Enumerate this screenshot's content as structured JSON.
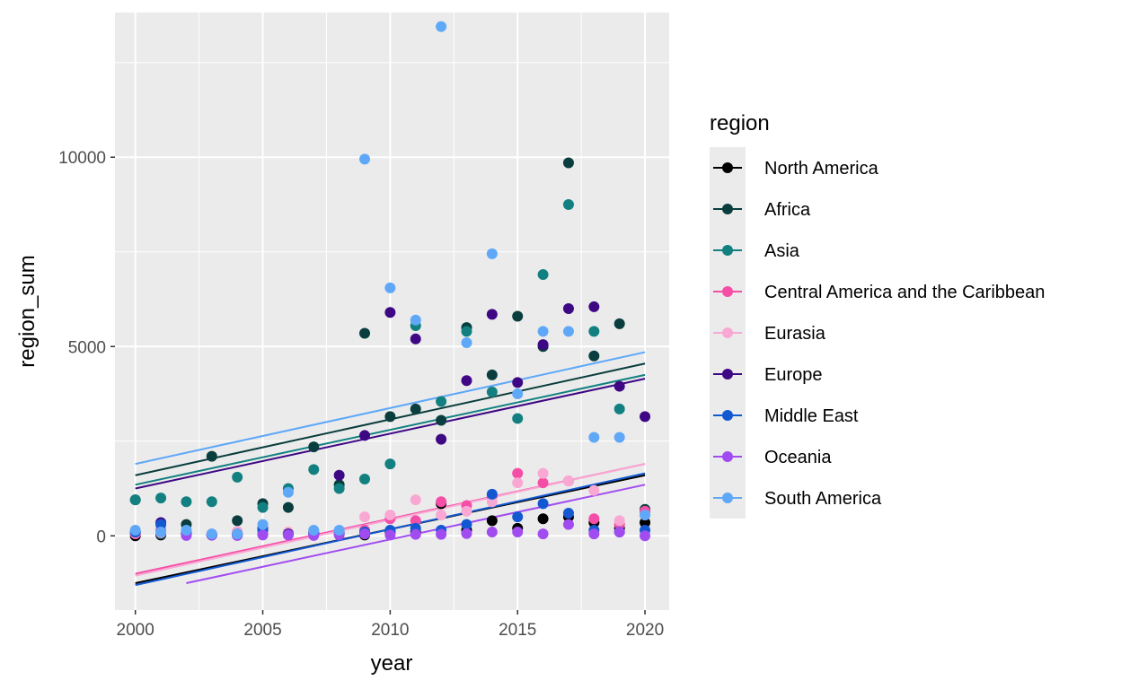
{
  "chart_data": {
    "type": "scatter",
    "title": "",
    "xlabel": "year",
    "ylabel": "region_sum",
    "xlim": [
      1999.2,
      2020.95
    ],
    "ylim": [
      -1960,
      13820
    ],
    "x_ticks": [
      2000,
      2005,
      2010,
      2015,
      2020
    ],
    "y_ticks": [
      0,
      5000,
      10000
    ],
    "x_tick_labels": [
      "2000",
      "2005",
      "2010",
      "2015",
      "2020"
    ],
    "y_tick_labels": [
      "0",
      "5000",
      "10000"
    ],
    "grid": true,
    "legend": {
      "title": "region",
      "position": "right"
    },
    "series": [
      {
        "name": "North America",
        "color": "#000000",
        "points": [
          [
            2000,
            0
          ],
          [
            2001,
            20
          ],
          [
            2002,
            50
          ],
          [
            2003,
            20
          ],
          [
            2004,
            20
          ],
          [
            2005,
            50
          ],
          [
            2006,
            60
          ],
          [
            2007,
            100
          ],
          [
            2008,
            100
          ],
          [
            2009,
            20
          ],
          [
            2010,
            100
          ],
          [
            2011,
            100
          ],
          [
            2012,
            850
          ],
          [
            2013,
            150
          ],
          [
            2014,
            400
          ],
          [
            2015,
            200
          ],
          [
            2016,
            450
          ],
          [
            2017,
            500
          ],
          [
            2018,
            350
          ],
          [
            2019,
            200
          ],
          [
            2020,
            350
          ]
        ],
        "trend": {
          "x": [
            2000,
            2020
          ],
          "y": [
            -1250,
            1600
          ]
        }
      },
      {
        "name": "Africa",
        "color": "#0a3d3d",
        "points": [
          [
            2000,
            950
          ],
          [
            2001,
            40
          ],
          [
            2002,
            300
          ],
          [
            2003,
            2100
          ],
          [
            2004,
            400
          ],
          [
            2005,
            850
          ],
          [
            2006,
            750
          ],
          [
            2007,
            2350
          ],
          [
            2008,
            1350
          ],
          [
            2009,
            5350
          ],
          [
            2010,
            3150
          ],
          [
            2011,
            3350
          ],
          [
            2012,
            3050
          ],
          [
            2013,
            5500
          ],
          [
            2014,
            4250
          ],
          [
            2015,
            5800
          ],
          [
            2016,
            5000
          ],
          [
            2017,
            9850
          ],
          [
            2018,
            4750
          ],
          [
            2019,
            5600
          ],
          [
            2020,
            700
          ]
        ],
        "trend": {
          "x": [
            2000,
            2020
          ],
          "y": [
            1600,
            4550
          ]
        }
      },
      {
        "name": "Asia",
        "color": "#128080",
        "points": [
          [
            2000,
            950
          ],
          [
            2001,
            1000
          ],
          [
            2002,
            900
          ],
          [
            2003,
            900
          ],
          [
            2004,
            1550
          ],
          [
            2005,
            750
          ],
          [
            2006,
            1250
          ],
          [
            2007,
            1750
          ],
          [
            2008,
            1250
          ],
          [
            2009,
            1500
          ],
          [
            2010,
            1900
          ],
          [
            2011,
            5550
          ],
          [
            2012,
            3550
          ],
          [
            2013,
            5400
          ],
          [
            2014,
            3800
          ],
          [
            2015,
            3100
          ],
          [
            2016,
            6900
          ],
          [
            2017,
            8750
          ],
          [
            2018,
            5400
          ],
          [
            2019,
            3350
          ],
          [
            2020,
            650
          ]
        ],
        "trend": {
          "x": [
            2000,
            2020
          ],
          "y": [
            1350,
            4250
          ]
        }
      },
      {
        "name": "Central America and the Caribbean",
        "color": "#f54ea6",
        "points": [
          [
            2000,
            50
          ],
          [
            2001,
            150
          ],
          [
            2002,
            50
          ],
          [
            2003,
            20
          ],
          [
            2004,
            50
          ],
          [
            2005,
            100
          ],
          [
            2006,
            80
          ],
          [
            2007,
            100
          ],
          [
            2008,
            80
          ],
          [
            2009,
            150
          ],
          [
            2010,
            450
          ],
          [
            2011,
            400
          ],
          [
            2012,
            900
          ],
          [
            2013,
            800
          ],
          [
            2014,
            1050
          ],
          [
            2015,
            1650
          ],
          [
            2016,
            1400
          ],
          [
            2017,
            1450
          ],
          [
            2018,
            450
          ],
          [
            2019,
            300
          ],
          [
            2020,
            650
          ]
        ],
        "trend": {
          "x": [
            2000,
            2020
          ],
          "y": [
            -1000,
            1900
          ]
        }
      },
      {
        "name": "Eurasia",
        "color": "#f9a8d4",
        "points": [
          [
            2000,
            80
          ],
          [
            2001,
            80
          ],
          [
            2002,
            80
          ],
          [
            2003,
            50
          ],
          [
            2004,
            120
          ],
          [
            2005,
            120
          ],
          [
            2006,
            100
          ],
          [
            2007,
            100
          ],
          [
            2008,
            100
          ],
          [
            2009,
            500
          ],
          [
            2010,
            550
          ],
          [
            2011,
            950
          ],
          [
            2012,
            550
          ],
          [
            2013,
            650
          ],
          [
            2014,
            900
          ],
          [
            2015,
            1400
          ],
          [
            2016,
            1650
          ],
          [
            2017,
            1450
          ],
          [
            2018,
            1200
          ],
          [
            2019,
            400
          ],
          [
            2020,
            550
          ]
        ],
        "trend": {
          "x": [
            2000,
            2020
          ],
          "y": [
            -1050,
            1900
          ]
        }
      },
      {
        "name": "Europe",
        "color": "#3e0784",
        "points": [
          [
            2000,
            100
          ],
          [
            2001,
            350
          ],
          [
            2002,
            60
          ],
          [
            2003,
            20
          ],
          [
            2004,
            50
          ],
          [
            2005,
            200
          ],
          [
            2006,
            50
          ],
          [
            2007,
            50
          ],
          [
            2008,
            1600
          ],
          [
            2009,
            2650
          ],
          [
            2010,
            5900
          ],
          [
            2011,
            5200
          ],
          [
            2012,
            2550
          ],
          [
            2013,
            4100
          ],
          [
            2014,
            5850
          ],
          [
            2015,
            4050
          ],
          [
            2016,
            5050
          ],
          [
            2017,
            6000
          ],
          [
            2018,
            6050
          ],
          [
            2019,
            3950
          ],
          [
            2020,
            3150
          ]
        ],
        "trend": {
          "x": [
            2000,
            2020
          ],
          "y": [
            1250,
            4150
          ]
        }
      },
      {
        "name": "Middle East",
        "color": "#1358d1",
        "points": [
          [
            2000,
            100
          ],
          [
            2001,
            300
          ],
          [
            2002,
            80
          ],
          [
            2003,
            20
          ],
          [
            2004,
            30
          ],
          [
            2005,
            150
          ],
          [
            2006,
            30
          ],
          [
            2007,
            50
          ],
          [
            2008,
            50
          ],
          [
            2009,
            100
          ],
          [
            2010,
            150
          ],
          [
            2011,
            200
          ],
          [
            2012,
            150
          ],
          [
            2013,
            300
          ],
          [
            2014,
            1100
          ],
          [
            2015,
            500
          ],
          [
            2016,
            850
          ],
          [
            2017,
            600
          ],
          [
            2018,
            150
          ],
          [
            2019,
            100
          ],
          [
            2020,
            150
          ]
        ],
        "trend": {
          "x": [
            2000,
            2020
          ],
          "y": [
            -1300,
            1650
          ]
        }
      },
      {
        "name": "Oceania",
        "color": "#a14cf0",
        "points": [
          [
            2002,
            10
          ],
          [
            2003,
            20
          ],
          [
            2004,
            10
          ],
          [
            2005,
            20
          ],
          [
            2006,
            20
          ],
          [
            2007,
            10
          ],
          [
            2008,
            20
          ],
          [
            2009,
            50
          ],
          [
            2010,
            20
          ],
          [
            2011,
            40
          ],
          [
            2012,
            40
          ],
          [
            2013,
            60
          ],
          [
            2014,
            100
          ],
          [
            2015,
            100
          ],
          [
            2016,
            50
          ],
          [
            2017,
            300
          ],
          [
            2018,
            50
          ],
          [
            2019,
            100
          ],
          [
            2020,
            0
          ]
        ],
        "trend": {
          "x": [
            2002,
            2020
          ],
          "y": [
            -1250,
            1350
          ]
        }
      },
      {
        "name": "South America",
        "color": "#5fa8f8",
        "points": [
          [
            2000,
            150
          ],
          [
            2001,
            100
          ],
          [
            2002,
            150
          ],
          [
            2003,
            50
          ],
          [
            2004,
            50
          ],
          [
            2005,
            300
          ],
          [
            2006,
            1150
          ],
          [
            2007,
            150
          ],
          [
            2008,
            150
          ],
          [
            2009,
            9950
          ],
          [
            2010,
            6550
          ],
          [
            2011,
            5700
          ],
          [
            2012,
            13450
          ],
          [
            2013,
            5100
          ],
          [
            2014,
            7450
          ],
          [
            2015,
            3750
          ],
          [
            2016,
            5400
          ],
          [
            2017,
            5400
          ],
          [
            2018,
            2600
          ],
          [
            2019,
            2600
          ],
          [
            2020,
            550
          ]
        ],
        "trend": {
          "x": [
            2000,
            2020
          ],
          "y": [
            1900,
            4850
          ]
        }
      }
    ]
  }
}
